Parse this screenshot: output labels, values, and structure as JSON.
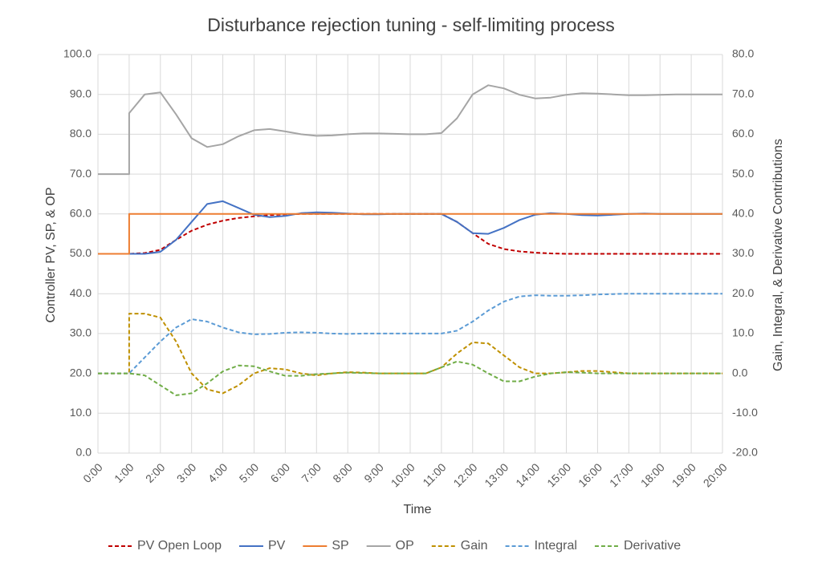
{
  "chart_data": {
    "type": "line",
    "title": "Disturbance rejection tuning - self-limiting process",
    "x_label": "Time",
    "y_label": "Controller PV, SP, & OP",
    "y2_label": "Gain, Integral, & Derivative Contributions",
    "x": [
      0,
      0.5,
      1,
      1,
      1.5,
      2,
      2.5,
      3,
      3.5,
      4,
      4.5,
      5,
      5.5,
      6,
      6.5,
      7,
      7.5,
      8,
      8.5,
      9,
      9.5,
      10,
      10.5,
      11,
      11.5,
      12,
      12.5,
      13,
      13.5,
      14,
      14.5,
      15,
      15.5,
      16,
      16.5,
      17,
      17.5,
      18,
      18.5,
      19,
      19.5,
      20
    ],
    "xlim": [
      0,
      20
    ],
    "xticks": [
      {
        "value": 0,
        "label": "0:00"
      },
      {
        "value": 1,
        "label": "1:00"
      },
      {
        "value": 2,
        "label": "2:00"
      },
      {
        "value": 3,
        "label": "3:00"
      },
      {
        "value": 4,
        "label": "4:00"
      },
      {
        "value": 5,
        "label": "5:00"
      },
      {
        "value": 6,
        "label": "6:00"
      },
      {
        "value": 7,
        "label": "7:00"
      },
      {
        "value": 8,
        "label": "8:00"
      },
      {
        "value": 9,
        "label": "9:00"
      },
      {
        "value": 10,
        "label": "10:00"
      },
      {
        "value": 11,
        "label": "11:00"
      },
      {
        "value": 12,
        "label": "12:00"
      },
      {
        "value": 13,
        "label": "13:00"
      },
      {
        "value": 14,
        "label": "14:00"
      },
      {
        "value": 15,
        "label": "15:00"
      },
      {
        "value": 16,
        "label": "16:00"
      },
      {
        "value": 17,
        "label": "17:00"
      },
      {
        "value": 18,
        "label": "18:00"
      },
      {
        "value": 19,
        "label": "19:00"
      },
      {
        "value": 20,
        "label": "20:00"
      }
    ],
    "ylim": [
      0,
      100
    ],
    "yticks": [
      {
        "value": 0,
        "label": "0.0"
      },
      {
        "value": 10,
        "label": "10.0"
      },
      {
        "value": 20,
        "label": "20.0"
      },
      {
        "value": 30,
        "label": "30.0"
      },
      {
        "value": 40,
        "label": "40.0"
      },
      {
        "value": 50,
        "label": "50.0"
      },
      {
        "value": 60,
        "label": "60.0"
      },
      {
        "value": 70,
        "label": "70.0"
      },
      {
        "value": 80,
        "label": "80.0"
      },
      {
        "value": 90,
        "label": "90.0"
      },
      {
        "value": 100,
        "label": "100.0"
      }
    ],
    "y2lim": [
      -20,
      80
    ],
    "y2ticks": [
      {
        "value": -20,
        "label": "-20.0"
      },
      {
        "value": -10,
        "label": "-10.0"
      },
      {
        "value": 0,
        "label": "0.0"
      },
      {
        "value": 10,
        "label": "10.0"
      },
      {
        "value": 20,
        "label": "20.0"
      },
      {
        "value": 30,
        "label": "30.0"
      },
      {
        "value": 40,
        "label": "40.0"
      },
      {
        "value": 50,
        "label": "50.0"
      },
      {
        "value": 60,
        "label": "60.0"
      },
      {
        "value": 70,
        "label": "70.0"
      },
      {
        "value": 80,
        "label": "80.0"
      }
    ],
    "grid": true,
    "legend": "bottom",
    "series": [
      {
        "name": "PV Open Loop",
        "color": "#c00000",
        "dashed": true,
        "values": [
          50,
          50,
          50,
          50,
          50.2,
          51,
          53.5,
          55.8,
          57.3,
          58.3,
          59,
          59.4,
          59.7,
          59.9,
          60,
          60,
          60,
          60,
          60,
          60,
          60,
          60,
          60,
          60,
          58,
          55.2,
          52.5,
          51.2,
          50.6,
          50.3,
          50.1,
          50,
          50,
          50,
          50,
          50,
          50,
          50,
          50,
          50,
          50,
          50
        ]
      },
      {
        "name": "PV",
        "color": "#4472c4",
        "dashed": false,
        "values": [
          50,
          50,
          50,
          50,
          50,
          50.5,
          53.5,
          58,
          62.5,
          63.2,
          61.5,
          59.8,
          59.2,
          59.5,
          60.2,
          60.4,
          60.3,
          60.1,
          59.9,
          59.9,
          60,
          60,
          60,
          60,
          58,
          55.2,
          55,
          56.5,
          58.5,
          59.8,
          60.2,
          60,
          59.7,
          59.6,
          59.8,
          60,
          60.1,
          60,
          60,
          60,
          60,
          60
        ]
      },
      {
        "name": "SP",
        "color": "#ed7d31",
        "dashed": false,
        "values": [
          50,
          50,
          50,
          60,
          60,
          60,
          60,
          60,
          60,
          60,
          60,
          60,
          60,
          60,
          60,
          60,
          60,
          60,
          60,
          60,
          60,
          60,
          60,
          60,
          60,
          60,
          60,
          60,
          60,
          60,
          60,
          60,
          60,
          60,
          60,
          60,
          60,
          60,
          60,
          60,
          60,
          60
        ]
      },
      {
        "name": "OP",
        "color": "#a5a5a5",
        "dashed": false,
        "values": [
          70,
          70,
          70,
          85.3,
          90,
          90.5,
          85,
          79,
          76.8,
          77.5,
          79.5,
          81,
          81.3,
          80.7,
          80,
          79.6,
          79.7,
          80,
          80.2,
          80.2,
          80.1,
          80,
          80,
          80.3,
          84,
          90,
          92.3,
          91.5,
          89.9,
          89,
          89.2,
          89.9,
          90.3,
          90.2,
          90,
          89.8,
          89.8,
          89.9,
          90,
          90,
          90,
          90
        ]
      },
      {
        "name": "Gain",
        "color": "#bf9000",
        "dashed": true,
        "axis": "y2",
        "values": [
          0,
          0,
          0,
          15,
          15,
          14,
          8,
          0,
          -4,
          -5,
          -3,
          0,
          1.3,
          1,
          0,
          -0.5,
          0,
          0.3,
          0.2,
          0,
          0,
          0,
          0,
          1.5,
          5,
          7.8,
          7.5,
          4.5,
          1.5,
          0,
          0,
          0.3,
          0.6,
          0.6,
          0.3,
          0,
          0,
          0,
          0,
          0,
          0,
          0
        ]
      },
      {
        "name": "Integral",
        "color": "#5b9bd5",
        "dashed": true,
        "axis": "y2",
        "values": [
          0,
          0,
          0,
          0,
          4,
          8,
          11.5,
          13.6,
          13,
          11.5,
          10.3,
          9.8,
          9.9,
          10.2,
          10.3,
          10.2,
          10,
          9.9,
          10,
          10,
          10,
          10,
          10,
          10,
          10.7,
          13,
          15.8,
          18,
          19.3,
          19.6,
          19.5,
          19.5,
          19.6,
          19.8,
          19.9,
          20,
          20,
          20,
          20,
          20,
          20,
          20
        ]
      },
      {
        "name": "Derivative",
        "color": "#70ad47",
        "dashed": true,
        "axis": "y2",
        "values": [
          0,
          0,
          0,
          0,
          -0.5,
          -3,
          -5.5,
          -5,
          -2.5,
          0.5,
          2,
          1.8,
          0.5,
          -0.6,
          -0.6,
          -0.2,
          0,
          0.2,
          0.1,
          0,
          0,
          0,
          0,
          1.5,
          3,
          2.2,
          0,
          -2,
          -2,
          -0.8,
          0,
          0.3,
          0.2,
          0,
          0,
          0,
          0,
          0,
          0,
          0,
          0,
          0
        ]
      }
    ]
  }
}
